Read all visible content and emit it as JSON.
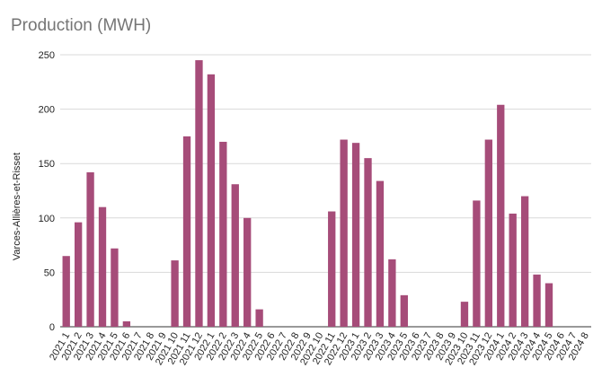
{
  "chart_data": {
    "type": "bar",
    "title": "Production (MWH)",
    "xlabel": "",
    "ylabel": "Varces-Allières-et-Risset",
    "ylim": [
      0,
      250
    ],
    "yticks": [
      0,
      50,
      100,
      150,
      200,
      250
    ],
    "grid": true,
    "legend": "none",
    "bar_color": "#a64c79",
    "categories": [
      "2021 1",
      "2021 2",
      "2021 3",
      "2021 4",
      "2021 5",
      "2021 6",
      "2021 7",
      "2021 8",
      "2021 9",
      "2021 10",
      "2021 11",
      "2021 12",
      "2022 1",
      "2022 2",
      "2022 3",
      "2022 4",
      "2022 5",
      "2022 6",
      "2022 7",
      "2022 8",
      "2022 9",
      "2022 10",
      "2022 11",
      "2022 12",
      "2023 1",
      "2023 2",
      "2023 3",
      "2023 4",
      "2023 5",
      "2023 6",
      "2023 7",
      "2023 8",
      "2023 9",
      "2023 10",
      "2023 11",
      "2023 12",
      "2024 1",
      "2024 2",
      "2024 3",
      "2024 4",
      "2024 5",
      "2024 6",
      "2024 7",
      "2024 8"
    ],
    "values": [
      65,
      96,
      142,
      110,
      72,
      5,
      0,
      0,
      0,
      61,
      175,
      245,
      232,
      170,
      131,
      100,
      16,
      0,
      0,
      0,
      0,
      0,
      106,
      172,
      169,
      155,
      134,
      62,
      29,
      0,
      0,
      0,
      0,
      23,
      116,
      172,
      204,
      104,
      120,
      48,
      40,
      0,
      0,
      0
    ]
  }
}
